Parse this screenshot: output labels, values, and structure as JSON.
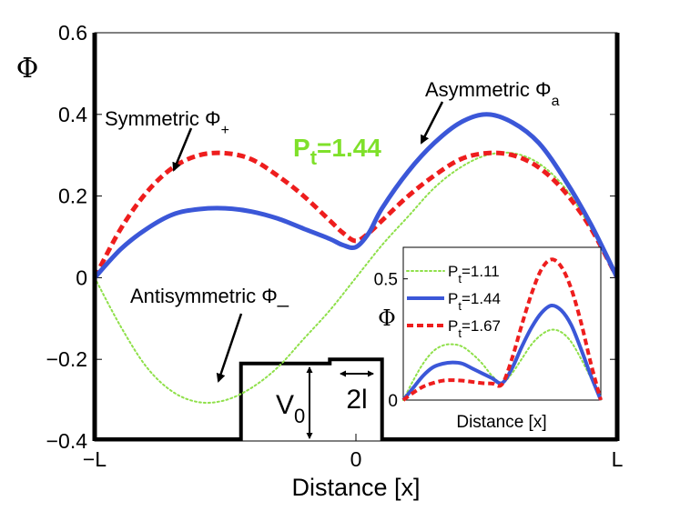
{
  "chart_data": [
    {
      "type": "line",
      "title": "",
      "xlabel": "Distance  [x]",
      "ylabel": "Φ",
      "ylim": [
        -0.4,
        0.6
      ],
      "x_ticks": [
        {
          "pos": 0,
          "label": "−L"
        },
        {
          "pos": 1,
          "label": "0"
        },
        {
          "pos": 2,
          "label": "L"
        }
      ],
      "y_ticks": [
        {
          "value": -0.4,
          "label": "−0.4"
        },
        {
          "value": -0.2,
          "label": "−0.2"
        },
        {
          "value": 0,
          "label": "0"
        },
        {
          "value": 0.2,
          "label": "0.2"
        },
        {
          "value": 0.4,
          "label": "0.4"
        },
        {
          "value": 0.6,
          "label": "0.6"
        }
      ],
      "series": [
        {
          "name": "Symmetric Φ+",
          "style": "dashed",
          "color": "#ee1d1d",
          "x": [
            0,
            0.1,
            0.2,
            0.3,
            0.4,
            0.5,
            0.6,
            0.7,
            0.8,
            0.9,
            0.95,
            1.0,
            1.05,
            1.1,
            1.2,
            1.3,
            1.4,
            1.5,
            1.6,
            1.7,
            1.8,
            1.9,
            2.0
          ],
          "values": [
            0,
            0.12,
            0.21,
            0.27,
            0.3,
            0.305,
            0.29,
            0.25,
            0.2,
            0.14,
            0.11,
            0.09,
            0.11,
            0.14,
            0.2,
            0.25,
            0.29,
            0.305,
            0.3,
            0.27,
            0.21,
            0.12,
            0
          ]
        },
        {
          "name": "Asymmetric Φa",
          "style": "solid",
          "color": "#3b57d8",
          "x": [
            0,
            0.1,
            0.2,
            0.3,
            0.4,
            0.5,
            0.6,
            0.7,
            0.8,
            0.9,
            0.95,
            1.0,
            1.05,
            1.1,
            1.2,
            1.3,
            1.4,
            1.5,
            1.6,
            1.7,
            1.8,
            1.9,
            2.0
          ],
          "values": [
            0,
            0.07,
            0.12,
            0.155,
            0.168,
            0.17,
            0.162,
            0.145,
            0.12,
            0.095,
            0.08,
            0.075,
            0.11,
            0.17,
            0.26,
            0.33,
            0.38,
            0.4,
            0.38,
            0.33,
            0.24,
            0.13,
            0
          ]
        },
        {
          "name": "Antisymmetric Φ−",
          "style": "dotted",
          "color": "#8fe04a",
          "x": [
            0,
            0.1,
            0.2,
            0.3,
            0.4,
            0.5,
            0.6,
            0.7,
            0.8,
            0.9,
            1.0,
            1.1,
            1.2,
            1.3,
            1.4,
            1.5,
            1.6,
            1.7,
            1.8,
            1.9,
            2.0
          ],
          "values": [
            0,
            -0.12,
            -0.22,
            -0.28,
            -0.305,
            -0.3,
            -0.27,
            -0.22,
            -0.15,
            -0.08,
            0,
            0.08,
            0.15,
            0.22,
            0.27,
            0.3,
            0.305,
            0.28,
            0.22,
            0.12,
            0
          ]
        }
      ],
      "potential_profile": {
        "x": [
          0,
          0.56,
          0.56,
          0.9,
          0.9,
          1.1,
          1.1,
          2.0
        ],
        "values": [
          -0.4,
          -0.4,
          -0.21,
          -0.21,
          -0.2,
          -0.2,
          -0.4,
          -0.4
        ]
      },
      "annotations": {
        "symmetric": "Symmetric Φ",
        "symmetric_sub": "+",
        "asymmetric": "Asymmetric Φ",
        "asymmetric_sub": "a",
        "antisymmetric": "Antisymmetric Φ_",
        "pt_main": "P",
        "pt_sub": "t",
        "pt_value": "=1.44",
        "pt_color": "#7fe02a",
        "v0_main": "V",
        "v0_sub": "0",
        "width_label": "2l"
      }
    },
    {
      "type": "line",
      "title": "",
      "xlabel": "Distance  [x]",
      "ylabel": "Φ",
      "y_ticks": [
        {
          "value": 0,
          "label": "0"
        },
        {
          "value": 0.5,
          "label": "0.5"
        }
      ],
      "ylim": [
        0,
        0.63
      ],
      "legend": [
        {
          "main": "P",
          "sub": "t",
          "value": "=1.11",
          "style": "dotted",
          "color": "#8fe04a"
        },
        {
          "main": "P",
          "sub": "t",
          "value": "=1.44",
          "style": "solid",
          "color": "#3b57d8"
        },
        {
          "main": "P",
          "sub": "t",
          "value": "=1.67",
          "style": "dashed",
          "color": "#ee1d1d"
        }
      ],
      "series": [
        {
          "name": "Pt=1.11",
          "style": "dotted",
          "color": "#8fe04a",
          "x": [
            0,
            0.05,
            0.1,
            0.15,
            0.2,
            0.25,
            0.3,
            0.35,
            0.4,
            0.45,
            0.5,
            0.55,
            0.6,
            0.65,
            0.7,
            0.75,
            0.8,
            0.85,
            0.9,
            0.95,
            1.0
          ],
          "values": [
            0,
            0.08,
            0.15,
            0.2,
            0.225,
            0.23,
            0.22,
            0.19,
            0.15,
            0.1,
            0.07,
            0.11,
            0.17,
            0.23,
            0.27,
            0.29,
            0.28,
            0.24,
            0.17,
            0.09,
            0
          ]
        },
        {
          "name": "Pt=1.44",
          "style": "solid",
          "color": "#3b57d8",
          "x": [
            0,
            0.05,
            0.1,
            0.15,
            0.2,
            0.25,
            0.3,
            0.35,
            0.4,
            0.45,
            0.5,
            0.55,
            0.6,
            0.65,
            0.7,
            0.75,
            0.8,
            0.85,
            0.9,
            0.95,
            1.0
          ],
          "values": [
            0,
            0.05,
            0.1,
            0.135,
            0.15,
            0.155,
            0.15,
            0.13,
            0.11,
            0.09,
            0.07,
            0.13,
            0.22,
            0.3,
            0.36,
            0.39,
            0.37,
            0.31,
            0.21,
            0.1,
            0
          ]
        },
        {
          "name": "Pt=1.67",
          "style": "dashed",
          "color": "#ee1d1d",
          "x": [
            0,
            0.05,
            0.1,
            0.15,
            0.2,
            0.25,
            0.3,
            0.35,
            0.4,
            0.45,
            0.5,
            0.55,
            0.6,
            0.65,
            0.7,
            0.75,
            0.8,
            0.85,
            0.9,
            0.95,
            1.0
          ],
          "values": [
            0,
            0.03,
            0.055,
            0.07,
            0.08,
            0.082,
            0.08,
            0.075,
            0.07,
            0.068,
            0.065,
            0.17,
            0.31,
            0.44,
            0.54,
            0.58,
            0.55,
            0.46,
            0.32,
            0.15,
            0
          ]
        }
      ]
    }
  ]
}
